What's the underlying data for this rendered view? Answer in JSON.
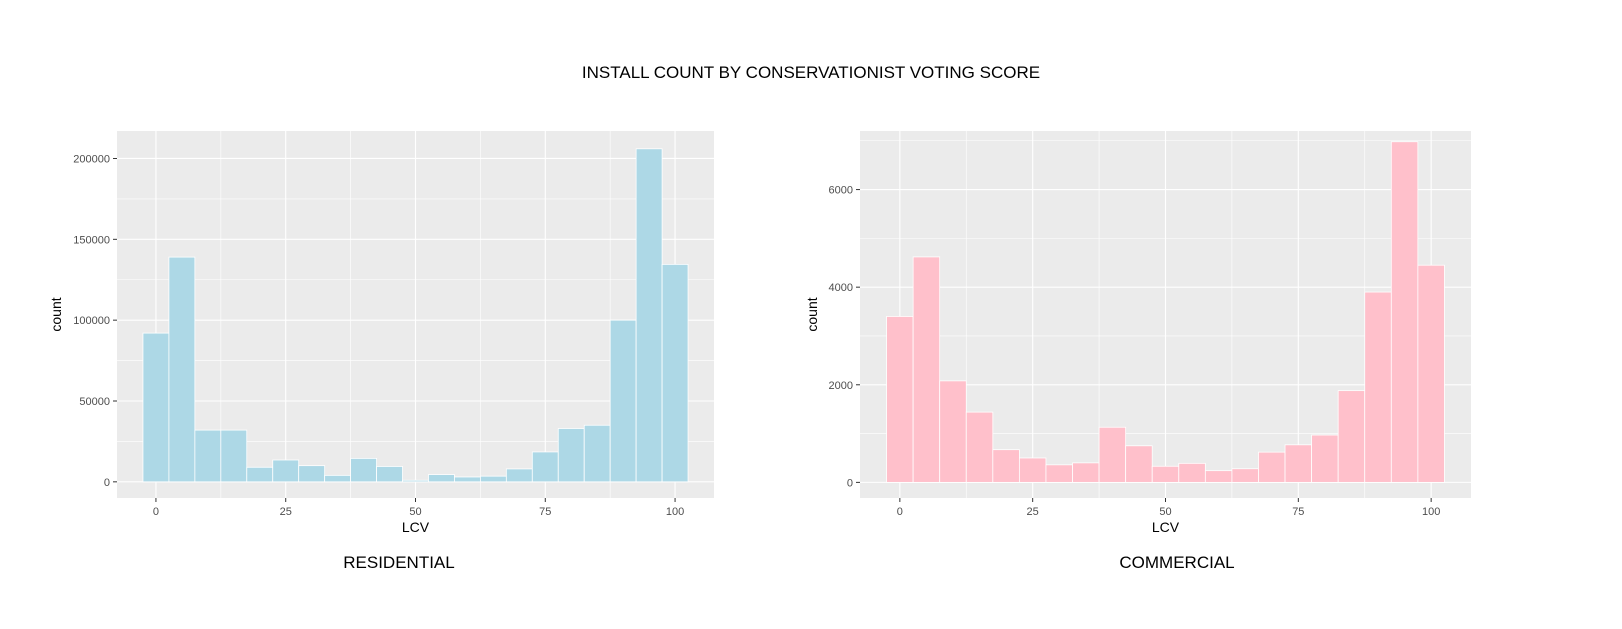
{
  "title": "INSTALL COUNT BY CONSERVATIONIST VOTING SCORE",
  "chart_data": [
    {
      "type": "bar",
      "caption": "RESIDENTIAL",
      "xlabel": "LCV",
      "ylabel": "count",
      "fill": "#add8e6",
      "panel_bg": "#ebebeb",
      "grid": true,
      "bin_width": 5,
      "bin_centers": [
        0,
        5,
        10,
        15,
        20,
        25,
        30,
        35,
        40,
        45,
        50,
        55,
        60,
        65,
        70,
        75,
        80,
        85,
        90,
        95,
        100
      ],
      "values": [
        92000,
        139000,
        32000,
        32000,
        9000,
        13500,
        10000,
        4000,
        14500,
        9500,
        1000,
        4500,
        3000,
        3500,
        8000,
        18500,
        33000,
        35000,
        100000,
        206000,
        134500
      ],
      "xlim": [
        -7.5,
        107.5
      ],
      "ylim": [
        -10000,
        217000
      ],
      "xticks": [
        0,
        25,
        50,
        75,
        100
      ],
      "yticks": [
        0,
        50000,
        100000,
        150000,
        200000
      ],
      "ytick_labels": [
        "0",
        "50000",
        "100000",
        "150000",
        "200000"
      ]
    },
    {
      "type": "bar",
      "caption": "COMMERCIAL",
      "xlabel": "LCV",
      "ylabel": "count",
      "fill": "#ffc0cb",
      "panel_bg": "#ebebeb",
      "grid": true,
      "bin_width": 5,
      "bin_centers": [
        0,
        5,
        10,
        15,
        20,
        25,
        30,
        35,
        40,
        45,
        50,
        55,
        60,
        65,
        70,
        75,
        80,
        85,
        90,
        95,
        100
      ],
      "values": [
        3400,
        4620,
        2080,
        1440,
        670,
        500,
        360,
        400,
        1130,
        750,
        330,
        390,
        240,
        280,
        620,
        770,
        970,
        1880,
        3900,
        6980,
        4450
      ],
      "xlim": [
        -7.5,
        107.5
      ],
      "ylim": [
        -320,
        7200
      ],
      "xticks": [
        0,
        25,
        50,
        75,
        100
      ],
      "yticks": [
        0,
        2000,
        4000,
        6000
      ],
      "ytick_labels": [
        "0",
        "2000",
        "4000",
        "6000"
      ]
    }
  ]
}
